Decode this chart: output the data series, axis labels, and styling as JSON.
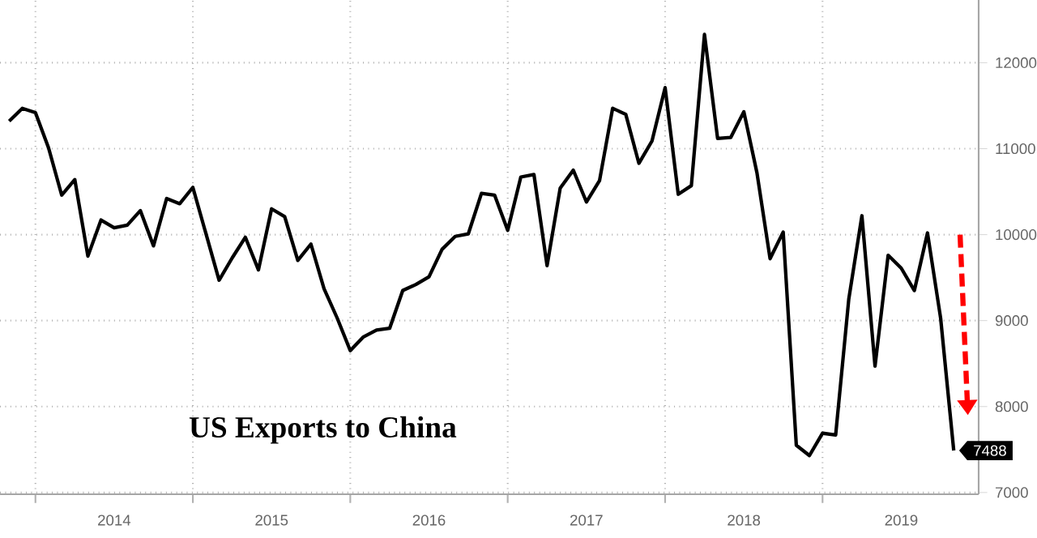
{
  "chart_data": {
    "type": "line",
    "title": "US Exports to China",
    "x": [
      "2013-11",
      "2013-12",
      "2014-01",
      "2014-02",
      "2014-03",
      "2014-04",
      "2014-05",
      "2014-06",
      "2014-07",
      "2014-08",
      "2014-09",
      "2014-10",
      "2014-11",
      "2014-12",
      "2015-01",
      "2015-02",
      "2015-03",
      "2015-04",
      "2015-05",
      "2015-06",
      "2015-07",
      "2015-08",
      "2015-09",
      "2015-10",
      "2015-11",
      "2015-12",
      "2016-01",
      "2016-02",
      "2016-03",
      "2016-04",
      "2016-05",
      "2016-06",
      "2016-07",
      "2016-08",
      "2016-09",
      "2016-10",
      "2016-11",
      "2016-12",
      "2017-01",
      "2017-02",
      "2017-03",
      "2017-04",
      "2017-05",
      "2017-06",
      "2017-07",
      "2017-08",
      "2017-09",
      "2017-10",
      "2017-11",
      "2017-12",
      "2018-01",
      "2018-02",
      "2018-03",
      "2018-04",
      "2018-05",
      "2018-06",
      "2018-07",
      "2018-08",
      "2018-09",
      "2018-10",
      "2018-11",
      "2018-12",
      "2019-01",
      "2019-02",
      "2019-03",
      "2019-04",
      "2019-05",
      "2019-06",
      "2019-07",
      "2019-08",
      "2019-09",
      "2019-10",
      "2019-11"
    ],
    "values": [
      11320,
      11470,
      11420,
      11010,
      10460,
      10640,
      9750,
      10170,
      10080,
      10110,
      10280,
      9870,
      10420,
      10360,
      10550,
      10010,
      9470,
      9730,
      9970,
      9590,
      10300,
      10210,
      9700,
      9890,
      9370,
      9030,
      8650,
      8810,
      8890,
      8910,
      9350,
      9420,
      9510,
      9830,
      9980,
      10010,
      10480,
      10460,
      10050,
      10670,
      10700,
      9640,
      10540,
      10750,
      10380,
      10630,
      11470,
      11400,
      10830,
      11090,
      11710,
      10470,
      10570,
      12330,
      11120,
      11130,
      11430,
      10720,
      9720,
      10030,
      7550,
      7430,
      7690,
      7670,
      9250,
      10220,
      8470,
      9760,
      9610,
      9350,
      10020,
      9030,
      7488
    ],
    "value_labels": [
      null,
      null,
      null,
      null,
      null,
      null,
      null,
      null,
      null,
      null,
      null,
      null,
      null,
      null,
      null,
      null,
      null,
      null,
      null,
      null,
      null,
      null,
      null,
      null,
      null,
      null,
      null,
      null,
      null,
      null,
      null,
      null,
      null,
      null,
      null,
      null,
      null,
      null,
      null,
      null,
      null,
      null,
      null,
      null,
      null,
      null,
      null,
      null,
      null,
      null,
      null,
      null,
      null,
      null,
      null,
      null,
      null,
      null,
      null,
      null,
      null,
      null,
      null,
      null,
      null,
      null,
      null,
      null,
      null,
      null,
      null,
      null,
      "7488"
    ],
    "color": "#000000",
    "xlim": [
      "2013-10-10",
      "2019-12-28"
    ],
    "ylim": [
      6980,
      12730
    ],
    "yticks": [
      7000,
      8000,
      9000,
      10000,
      11000,
      12000
    ],
    "xticks": [
      {
        "value": "2014-01",
        "label": null
      },
      {
        "value": "2014-07",
        "label": "2014"
      },
      {
        "value": "2015-01",
        "label": null
      },
      {
        "value": "2015-07",
        "label": "2015"
      },
      {
        "value": "2016-01",
        "label": null
      },
      {
        "value": "2016-07",
        "label": "2016"
      },
      {
        "value": "2017-01",
        "label": null
      },
      {
        "value": "2017-07",
        "label": "2017"
      },
      {
        "value": "2018-01",
        "label": null
      },
      {
        "value": "2018-07",
        "label": "2018"
      },
      {
        "value": "2019-01",
        "label": null
      },
      {
        "value": "2019-07",
        "label": "2019"
      }
    ],
    "grid": true
  }
}
